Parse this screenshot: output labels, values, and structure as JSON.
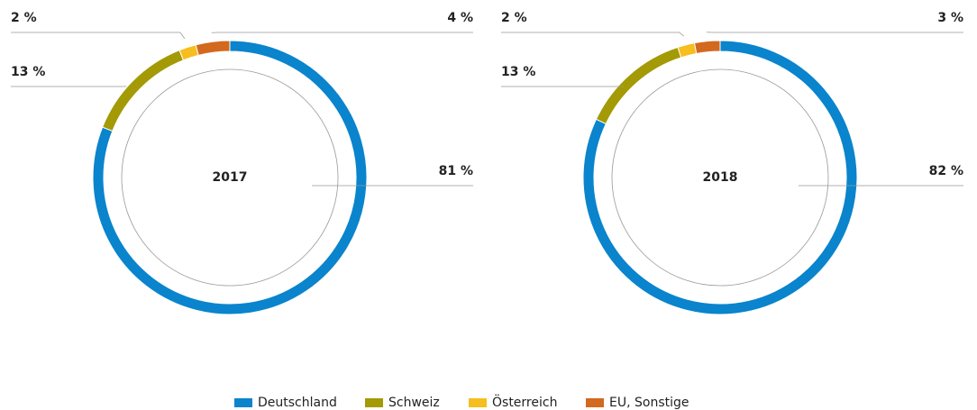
{
  "chart_data": [
    {
      "type": "pie",
      "title": "2017",
      "categories": [
        "Deutschland",
        "Schweiz",
        "Österreich",
        "EU, Sonstige"
      ],
      "values": [
        81,
        13,
        2,
        4
      ],
      "value_labels": [
        "81 %",
        "13 %",
        "2 %",
        "4 %"
      ],
      "colors": [
        "#0a84cc",
        "#a39a06",
        "#f6be1e",
        "#d2691e"
      ]
    },
    {
      "type": "pie",
      "title": "2018",
      "categories": [
        "Deutschland",
        "Schweiz",
        "Österreich",
        "EU, Sonstige"
      ],
      "values": [
        82,
        13,
        2,
        3
      ],
      "value_labels": [
        "82 %",
        "13 %",
        "2 %",
        "3 %"
      ],
      "colors": [
        "#0a84cc",
        "#a39a06",
        "#f6be1e",
        "#d2691e"
      ]
    }
  ]
}
